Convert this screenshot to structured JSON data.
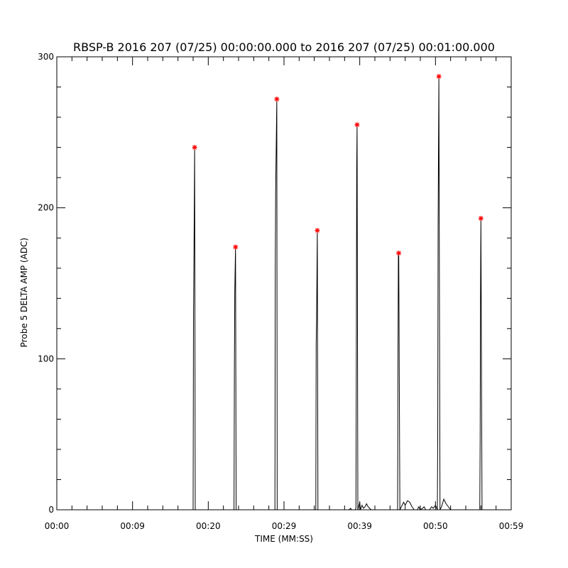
{
  "chart_data": {
    "type": "line",
    "title": "RBSP-B 2016 207 (07/25) 00:00:00.000 to 2016 207 (07/25) 00:01:00.000",
    "xlabel": "TIME (MM:SS)",
    "ylabel": "Probe 5 DELTA AMP (ADC)",
    "xlim": [
      0,
      60
    ],
    "ylim": [
      0,
      300
    ],
    "x_units": "seconds",
    "x_ticks": [
      {
        "value": 0,
        "label": "00:00"
      },
      {
        "value": 10,
        "label": "00:09"
      },
      {
        "value": 20,
        "label": "00:20"
      },
      {
        "value": 30,
        "label": "00:29"
      },
      {
        "value": 40,
        "label": "00:39"
      },
      {
        "value": 50,
        "label": "00:50"
      },
      {
        "value": 60,
        "label": "00:59"
      }
    ],
    "y_ticks": [
      0,
      100,
      200,
      300
    ],
    "grid": false,
    "colors": {
      "line": "#000000",
      "peak_marker": "#ff0000",
      "axes": "#000000"
    },
    "series": [
      {
        "values": [
          [
            0,
            0
          ],
          [
            18.0,
            0
          ],
          [
            18.05,
            130
          ],
          [
            18.12,
            173
          ],
          [
            18.2,
            240
          ],
          [
            18.28,
            0
          ],
          [
            23.4,
            0
          ],
          [
            23.45,
            92
          ],
          [
            23.5,
            145
          ],
          [
            23.6,
            174
          ],
          [
            23.68,
            0
          ],
          [
            28.8,
            0
          ],
          [
            28.85,
            160
          ],
          [
            28.9,
            212
          ],
          [
            29.05,
            272
          ],
          [
            29.1,
            0
          ],
          [
            34.2,
            0
          ],
          [
            34.25,
            110
          ],
          [
            34.3,
            125
          ],
          [
            34.4,
            185
          ],
          [
            34.48,
            0
          ],
          [
            38.6,
            0
          ],
          [
            38.8,
            1
          ],
          [
            38.9,
            0
          ],
          [
            39.4,
            0
          ],
          [
            39.5,
            1
          ],
          [
            39.55,
            100
          ],
          [
            39.6,
            225
          ],
          [
            39.65,
            255
          ],
          [
            39.75,
            0
          ],
          [
            40.0,
            5
          ],
          [
            40.1,
            0
          ],
          [
            40.3,
            3
          ],
          [
            40.5,
            1
          ],
          [
            40.7,
            2
          ],
          [
            40.9,
            4
          ],
          [
            41.1,
            2
          ],
          [
            41.3,
            1
          ],
          [
            41.5,
            0
          ],
          [
            45.0,
            0
          ],
          [
            45.05,
            93
          ],
          [
            45.1,
            168
          ],
          [
            45.15,
            170
          ],
          [
            45.3,
            0
          ],
          [
            45.5,
            2
          ],
          [
            45.8,
            5
          ],
          [
            46.0,
            3
          ],
          [
            46.3,
            6
          ],
          [
            46.6,
            5
          ],
          [
            46.9,
            2
          ],
          [
            47.2,
            0
          ],
          [
            47.6,
            0
          ],
          [
            47.8,
            2
          ],
          [
            48.0,
            0
          ],
          [
            48.3,
            1
          ],
          [
            48.5,
            2
          ],
          [
            48.7,
            0
          ],
          [
            49.2,
            0
          ],
          [
            49.5,
            2
          ],
          [
            49.7,
            1
          ],
          [
            50.0,
            3
          ],
          [
            50.25,
            0
          ],
          [
            50.3,
            50
          ],
          [
            50.35,
            190
          ],
          [
            50.45,
            287
          ],
          [
            50.6,
            0
          ],
          [
            50.8,
            2
          ],
          [
            51.1,
            7
          ],
          [
            51.4,
            4
          ],
          [
            51.7,
            2
          ],
          [
            52.0,
            0
          ],
          [
            55.85,
            0
          ],
          [
            55.9,
            46
          ],
          [
            55.95,
            143
          ],
          [
            56.0,
            193
          ],
          [
            56.15,
            0
          ],
          [
            60,
            0
          ]
        ]
      }
    ],
    "peaks": [
      {
        "x": 18.2,
        "y": 240
      },
      {
        "x": 23.6,
        "y": 174
      },
      {
        "x": 29.05,
        "y": 272
      },
      {
        "x": 34.4,
        "y": 185
      },
      {
        "x": 39.65,
        "y": 255
      },
      {
        "x": 45.15,
        "y": 170
      },
      {
        "x": 50.45,
        "y": 287
      },
      {
        "x": 56.0,
        "y": 193
      }
    ]
  }
}
